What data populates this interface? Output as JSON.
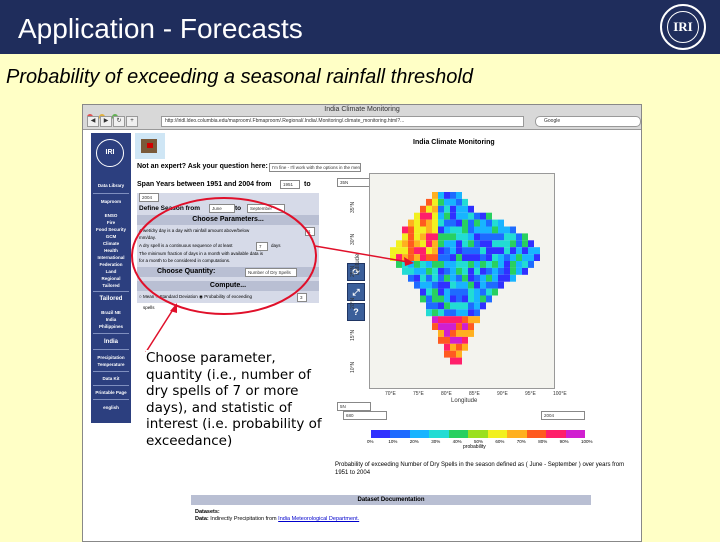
{
  "slide": {
    "title": "Application - Forecasts",
    "subtitle": "Probability of exceeding a seasonal rainfall threshold",
    "logo_text": "IRI",
    "colors": {
      "title_bar": "#1f2d5c",
      "background": "#ffffc6",
      "annotation_ellipse": "#e0102a",
      "arrow": "#e0102a"
    }
  },
  "browser": {
    "window_title": "India Climate Monitoring",
    "url": "http://iridl.ldeo.columbia.edu/maproom/.Fbmaproom/.Regional/.India/.Monitoring/.climate_monitoring.html?...",
    "search_placeholder": "Google",
    "nav": {
      "back_icon": "back-arrow-icon",
      "forward_icon": "forward-arrow-icon",
      "reload_icon": "reload-icon"
    }
  },
  "sidebar": {
    "logo": "IRI",
    "items": [
      {
        "label": "Data Library"
      },
      {
        "label": "Maproom"
      },
      {
        "label": "ENSO"
      },
      {
        "label": "Fire"
      },
      {
        "label": "Food Security"
      },
      {
        "label": "GCM"
      },
      {
        "label": "Climate"
      },
      {
        "label": "Health"
      },
      {
        "label": "International"
      },
      {
        "label": "Federation"
      },
      {
        "label": "Land"
      },
      {
        "label": "Regional"
      },
      {
        "label": "Tailored"
      },
      {
        "label": "Tailored"
      },
      {
        "label": "Brazil NE"
      },
      {
        "label": "India"
      },
      {
        "label": "Philippines"
      },
      {
        "label": "India"
      },
      {
        "label": "Precipitation"
      },
      {
        "label": "Temperature"
      },
      {
        "label": "Data Kit"
      },
      {
        "label": "Printable Page"
      },
      {
        "label": "english"
      }
    ]
  },
  "form": {
    "expert_label": "Not an expert? Ask your question here:",
    "expert_select": "I'm fine - I'll work with the options in the menus",
    "span_label": "Span Years between 1951 and 2004 from",
    "span_from": "1951",
    "span_to_label": "to",
    "span_to": "2004",
    "season_label": "Define Season from",
    "season_from": "June",
    "season_to_label": "to",
    "season_to": "September",
    "choose_parameters": "Choose Parameters...",
    "param_lines": [
      "A wet/dry day is a day with rainfall amount above/below",
      "mm/day.",
      "A dry spell is a continuous sequence of at least",
      "The minimum fraction of days in a month with available data is",
      "for a month to be considered in computations."
    ],
    "dry_amount": "1",
    "spell_days": "7",
    "days_label": "days",
    "choose_quantity": "Choose Quantity:",
    "quantity_value": "Number of Dry Spells",
    "compute": "Compute...",
    "statistic_options": [
      "Mean",
      "Standard Deviation",
      "Probability of exceeding"
    ],
    "statistic_selected": 2,
    "threshold_value": "3",
    "statistic_suffix": "spells"
  },
  "map": {
    "header": "India Climate Monitoring",
    "lat_top_value": "35N",
    "lat_bottom_value": "5N",
    "lon_left_value": "680",
    "lon_right_value": "2004",
    "lat_ticks": [
      "35°N",
      "30°N",
      "25°N",
      "20°N",
      "15°N",
      "10°N"
    ],
    "lon_ticks": [
      "70°E",
      "75°E",
      "80°E",
      "85°E",
      "90°E",
      "95°E",
      "100°E"
    ],
    "lat_title": "Latitude",
    "lon_title": "Longitude",
    "tools": [
      {
        "icon": "rotate-icon"
      },
      {
        "icon": "expand-arrows-icon"
      },
      {
        "icon": "help-icon"
      }
    ]
  },
  "colorbar": {
    "ticks": [
      "0%",
      "10%",
      "20%",
      "30%",
      "40%",
      "50%",
      "60%",
      "70%",
      "80%",
      "90%",
      "100%"
    ],
    "label": "probability",
    "colors": [
      "#3030ff",
      "#1e6bff",
      "#18b4ff",
      "#22dcd4",
      "#28d060",
      "#9be020",
      "#f2f020",
      "#ffb020",
      "#ff5a20",
      "#ff1f6a",
      "#d01fd0"
    ]
  },
  "caption": "Probability of exceeding Number of Dry Spells in the season defined as ( June - September ) over years from 1951 to 2004",
  "documentation": {
    "title": "Dataset Documentation",
    "datasets_label": "Datasets:",
    "data_label": "Data:",
    "data_text": "Indirectly Precipitation from",
    "data_link": "India Meteorological Department."
  },
  "annotation": "Choose parameter, quantity (i.e., number of dry spells of 7 or more days), and statistic of interest (i.e. probability of exceedance)"
}
